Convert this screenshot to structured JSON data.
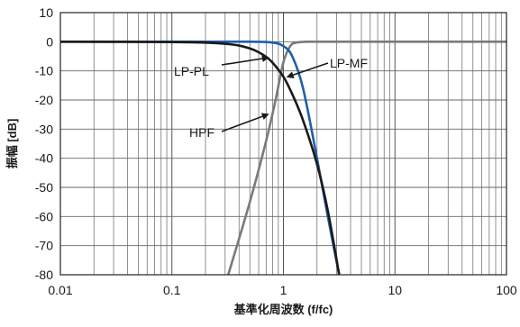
{
  "chart_data": {
    "type": "line",
    "x_scale": "log",
    "xlim": [
      0.01,
      100
    ],
    "ylim": [
      -80,
      10
    ],
    "grid": true,
    "xlabel": "基準化周波数 (f/fc)",
    "ylabel": "振幅 [dB]",
    "x_ticks": [
      0.01,
      0.1,
      1,
      10,
      100
    ],
    "x_tick_labels": [
      "0.01",
      "0.1",
      "1",
      "10",
      "100"
    ],
    "y_ticks": [
      10,
      0,
      -10,
      -20,
      -30,
      -40,
      -50,
      -60,
      -70,
      -80
    ],
    "y_tick_labels": [
      "10",
      "0",
      "-10",
      "-20",
      "-30",
      "-40",
      "-50",
      "-60",
      "-70",
      "-80"
    ],
    "series": [
      {
        "name": "LP-PL",
        "color": "#1a1a1a",
        "x": [
          0.01,
          0.1,
          0.2,
          0.3,
          0.4,
          0.5,
          0.6,
          0.7,
          0.8,
          1.0,
          1.2,
          1.5,
          2.0,
          2.5,
          3.16
        ],
        "y": [
          0,
          -0.1,
          -0.3,
          -0.7,
          -1.3,
          -2.3,
          -3.6,
          -5.2,
          -7.2,
          -12,
          -18,
          -27,
          -42,
          -58,
          -80
        ]
      },
      {
        "name": "LP-MF",
        "color": "#1f5fa8",
        "x": [
          0.01,
          0.1,
          0.5,
          0.8,
          1.0,
          1.2,
          1.5,
          2.0,
          2.5,
          3.16
        ],
        "y": [
          0,
          0,
          0,
          -0.3,
          -1.5,
          -5,
          -16,
          -40,
          -60,
          -80
        ]
      },
      {
        "name": "HPF",
        "color": "#7a7a7a",
        "x": [
          0.32,
          0.5,
          0.7,
          0.85,
          1.0,
          1.15,
          1.3,
          1.6,
          2.0,
          5,
          100
        ],
        "y": [
          -80,
          -55,
          -34,
          -20,
          -7,
          -1.5,
          -0.3,
          0,
          0,
          0,
          0
        ]
      }
    ],
    "annotations": [
      {
        "text": "LP-PL",
        "points_to": [
          0.72,
          -5.5
        ]
      },
      {
        "text": "LP-MF",
        "points_to": [
          1.1,
          -12
        ]
      },
      {
        "text": "HPF",
        "points_to": [
          0.72,
          -25
        ]
      }
    ]
  }
}
